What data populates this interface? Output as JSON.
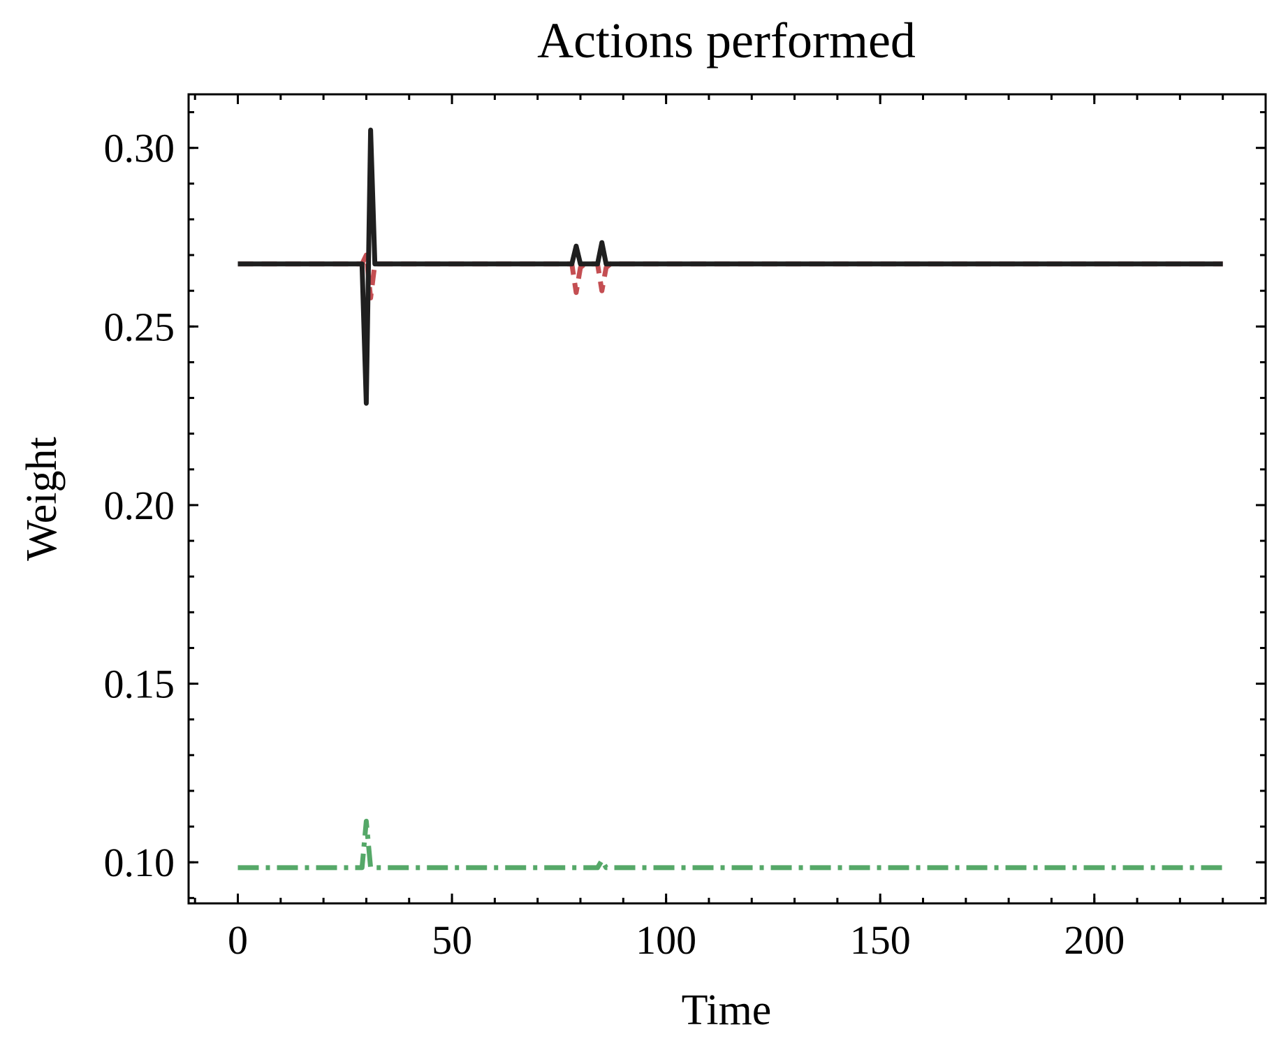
{
  "chart_data": {
    "type": "line",
    "title": "Actions performed",
    "xlabel": "Time",
    "ylabel": "Weight",
    "xlim": [
      -11.5,
      240
    ],
    "ylim": [
      0.0885,
      0.315
    ],
    "x_major_ticks": [
      0,
      50,
      100,
      150,
      200
    ],
    "x_minor_step": 10,
    "x_minor_range": [
      -10,
      240
    ],
    "y_major_ticks": [
      0.1,
      0.15,
      0.2,
      0.25,
      0.3
    ],
    "y_minor_step": 0.01,
    "y_minor_range": [
      0.09,
      0.31
    ],
    "grid": false,
    "series": [
      {
        "color": "#c44e52",
        "dash": "dashed",
        "width": 7,
        "x": [
          0,
          29,
          30,
          31,
          32,
          78,
          79,
          80,
          81,
          84,
          85,
          86,
          87,
          230
        ],
        "y": [
          0.2675,
          0.2675,
          0.27,
          0.258,
          0.2675,
          0.2675,
          0.2595,
          0.2665,
          0.2675,
          0.2675,
          0.26,
          0.2665,
          0.2675,
          0.2675
        ]
      },
      {
        "color": "#55a868",
        "dash": "dashdot",
        "width": 7,
        "x": [
          0,
          29,
          30,
          31,
          32,
          78,
          79,
          80,
          81,
          84,
          85,
          86,
          87,
          230
        ],
        "y": [
          0.0985,
          0.0985,
          0.1115,
          0.0985,
          0.0985,
          0.0985,
          0.0985,
          0.0985,
          0.0985,
          0.0985,
          0.1005,
          0.0985,
          0.0985,
          0.0985
        ]
      },
      {
        "color": "#1f1f1f",
        "dash": "solid",
        "width": 7,
        "x": [
          0,
          29,
          30,
          31,
          32,
          78,
          79,
          80,
          81,
          84,
          85,
          86,
          87,
          230
        ],
        "y": [
          0.2675,
          0.2675,
          0.2285,
          0.305,
          0.2675,
          0.2675,
          0.2725,
          0.2675,
          0.2675,
          0.2675,
          0.2735,
          0.2675,
          0.2675,
          0.2675
        ]
      }
    ]
  }
}
